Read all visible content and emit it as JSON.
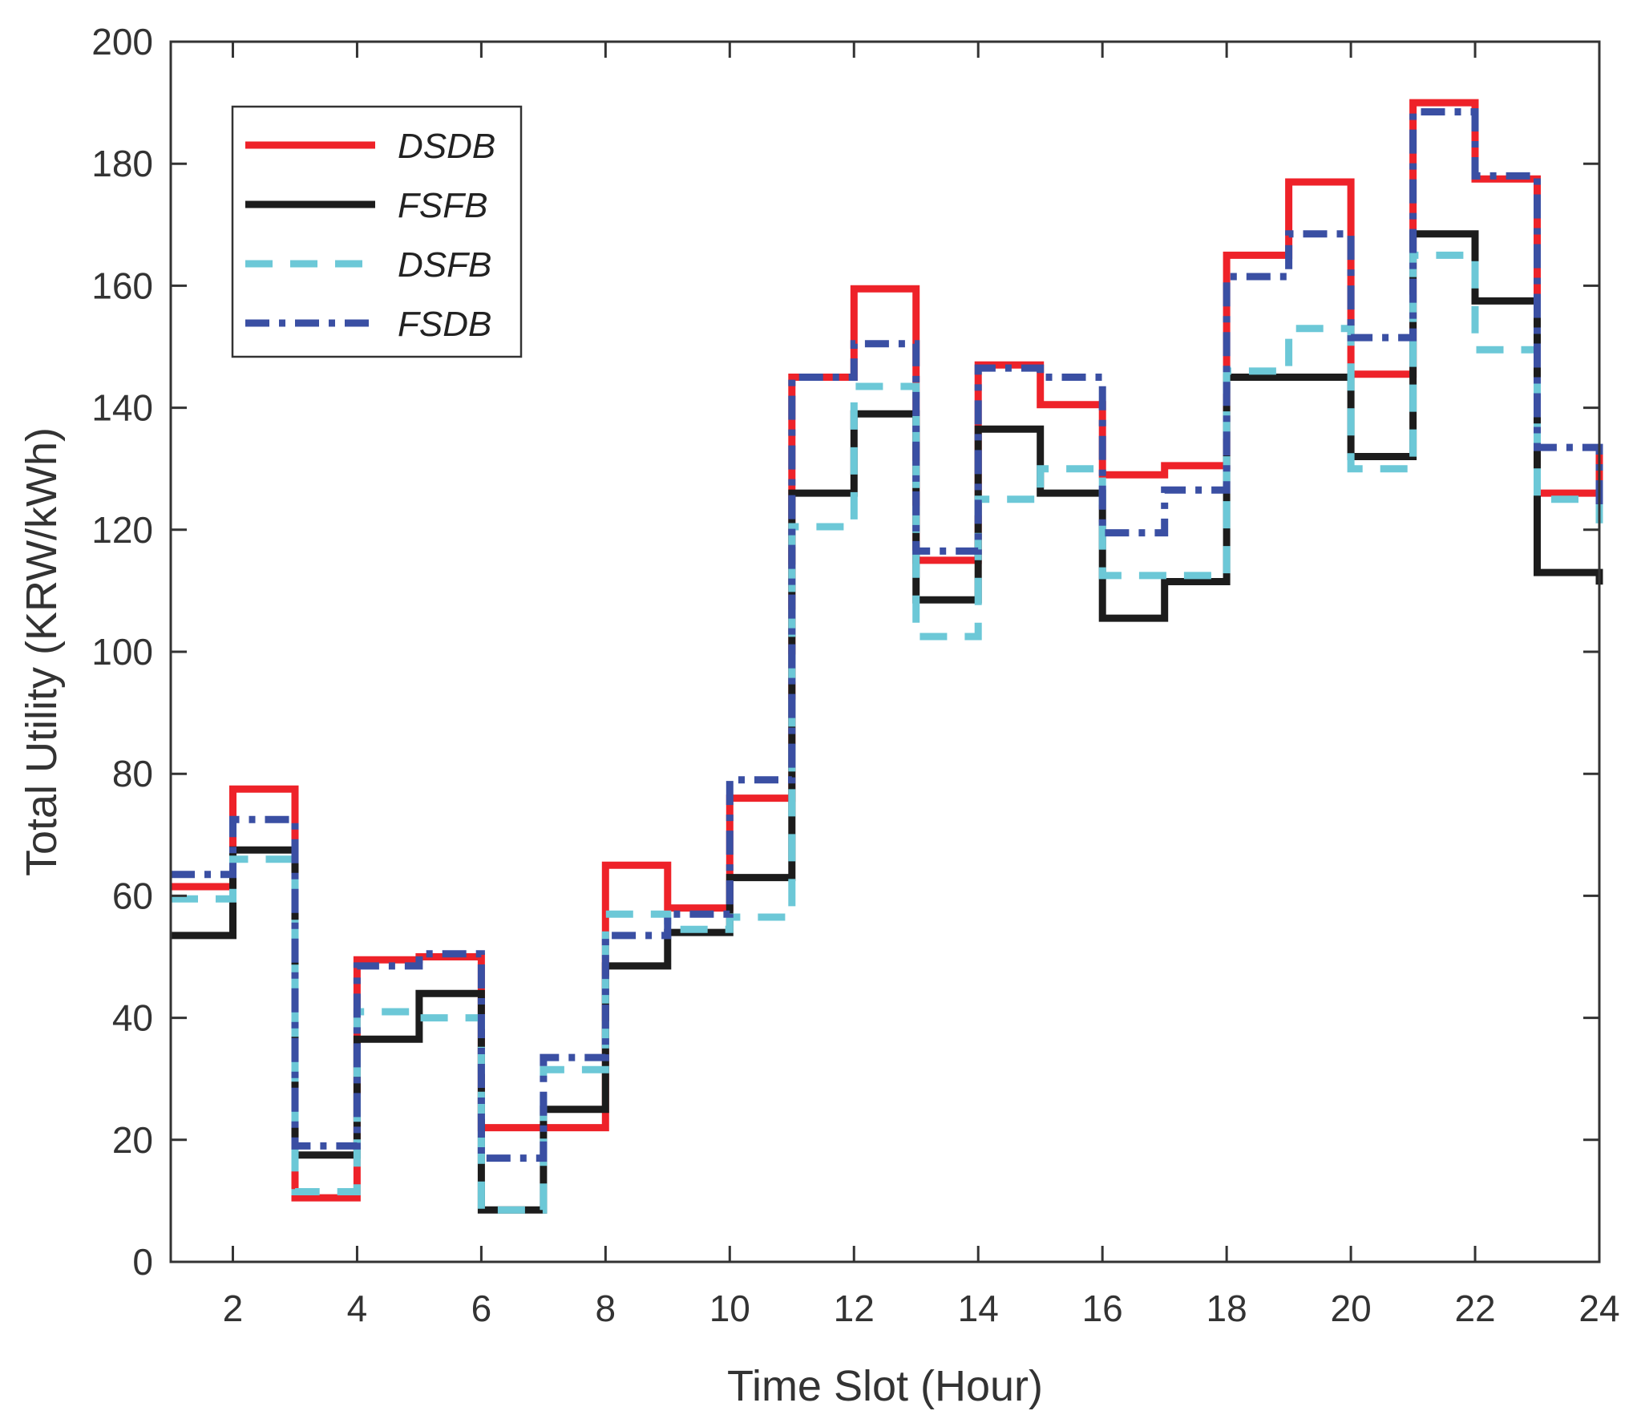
{
  "chart_data": {
    "type": "line",
    "style": "stairs",
    "title": "",
    "xlabel": "Time Slot (Hour)",
    "ylabel": "Total Utility (KRW/kWh)",
    "xlim": [
      1,
      24
    ],
    "ylim": [
      0,
      200
    ],
    "xticks": [
      2,
      4,
      6,
      8,
      10,
      12,
      14,
      16,
      18,
      20,
      22,
      24
    ],
    "yticks": [
      0,
      20,
      40,
      60,
      80,
      100,
      120,
      140,
      160,
      180,
      200
    ],
    "grid": false,
    "legend_position": "top-left",
    "x": [
      1,
      2,
      3,
      4,
      5,
      6,
      7,
      8,
      9,
      10,
      11,
      12,
      13,
      14,
      15,
      16,
      17,
      18,
      19,
      20,
      21,
      22,
      23,
      24
    ],
    "series": [
      {
        "name": "DSDB",
        "color": "#ee2229",
        "dash": "solid",
        "values": [
          61.5,
          77.5,
          10.5,
          49.5,
          50,
          22,
          22,
          65,
          58,
          76,
          145,
          159.5,
          115,
          147,
          140.5,
          129,
          130.5,
          165,
          177,
          145.5,
          190,
          177.5,
          126,
          133
        ]
      },
      {
        "name": "FSFB",
        "color": "#1c1c1c",
        "dash": "solid",
        "values": [
          53.5,
          67.5,
          17.5,
          36.5,
          44,
          8.5,
          25,
          48.5,
          54,
          63,
          126,
          139,
          108.5,
          136.5,
          126,
          105.5,
          111.5,
          145,
          145,
          132,
          168.5,
          157.5,
          113,
          111
        ]
      },
      {
        "name": "DSFB",
        "color": "#6cc8d7",
        "dash": "dashed",
        "values": [
          59.5,
          66,
          11.5,
          41,
          40,
          8.5,
          31.5,
          57,
          54.5,
          56.5,
          120.5,
          143.5,
          102.5,
          125,
          130,
          112.5,
          112.5,
          146,
          153,
          130,
          165,
          149.5,
          125,
          118.5
        ]
      },
      {
        "name": "FSDB",
        "color": "#3a4fa3",
        "dash": "dashdot",
        "values": [
          63.5,
          72.5,
          19,
          48.5,
          50.5,
          17,
          33.5,
          53.5,
          57,
          79,
          145,
          150.5,
          116.5,
          146.5,
          145,
          119.5,
          126.5,
          161.5,
          168.5,
          151.5,
          188.5,
          178,
          133.5,
          123
        ]
      }
    ]
  }
}
